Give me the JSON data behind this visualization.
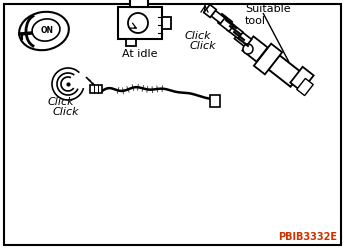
{
  "bg_color": "#ffffff",
  "border_color": "#000000",
  "ref_color": "#cc3300",
  "ref_text": "PBIB3332E",
  "label_at_idle": "At idle",
  "label_suitable_tool": "Suitable\ntool",
  "label_click1_top": "Click",
  "label_click1_bot": "Click",
  "label_click2_top": "Click",
  "label_click2_bot": "Click",
  "fig_width": 3.45,
  "fig_height": 2.49,
  "dpi": 100
}
